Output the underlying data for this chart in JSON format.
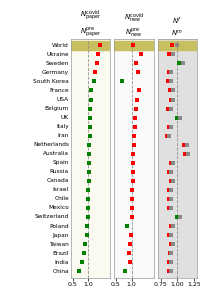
{
  "countries": [
    "World",
    "Ukraine",
    "Sweden",
    "Germany",
    "South Korea",
    "France",
    "USA",
    "Belgium",
    "UK",
    "Italy",
    "Iran",
    "Netherlands",
    "Australia",
    "Spain",
    "Russia",
    "Canada",
    "Israel",
    "Chile",
    "Mexico",
    "Switzerland",
    "Poland",
    "Japan",
    "Taiwan",
    "Brazil",
    "India",
    "China"
  ],
  "panel1": {
    "values": [
      1.38,
      1.32,
      1.28,
      1.22,
      1.18,
      1.1,
      1.08,
      1.06,
      1.05,
      1.04,
      1.04,
      1.03,
      1.02,
      1.02,
      1.01,
      1.01,
      1.0,
      1.0,
      0.99,
      0.98,
      0.97,
      0.96,
      0.9,
      0.85,
      0.79,
      0.71
    ],
    "colors": [
      "red",
      "red",
      "red",
      "red",
      "green",
      "green",
      "green",
      "green",
      "green",
      "green",
      "green",
      "green",
      "green",
      "green",
      "green",
      "green",
      "green",
      "green",
      "green",
      "green",
      "green",
      "green",
      "green",
      "green",
      "green",
      "green"
    ],
    "xlim": [
      0.45,
      1.7
    ],
    "xticks": [
      0.5,
      1.0
    ],
    "xticklabels": [
      "0.5",
      "1.0"
    ],
    "vline": 1.0,
    "bg_color": "#fafaf0"
  },
  "panel2": {
    "values": [
      1.05,
      1.3,
      1.15,
      1.2,
      0.68,
      1.22,
      1.18,
      1.14,
      1.12,
      1.1,
      1.08,
      1.06,
      1.05,
      1.04,
      1.04,
      1.03,
      1.02,
      1.01,
      1.01,
      1.0,
      0.85,
      0.98,
      0.95,
      0.92,
      0.95,
      0.78
    ],
    "colors": [
      "red",
      "red",
      "red",
      "red",
      "green",
      "red",
      "red",
      "red",
      "red",
      "red",
      "red",
      "red",
      "red",
      "red",
      "red",
      "red",
      "red",
      "red",
      "red",
      "red",
      "green",
      "red",
      "red",
      "red",
      "red",
      "green"
    ],
    "xlim": [
      0.45,
      1.7
    ],
    "xticks": [
      0.5,
      1.0
    ],
    "xticklabels": [
      "0.5",
      "1.0"
    ],
    "vline": 1.0,
    "bg_color": "#fafafa"
  },
  "panel3": {
    "values_colored": [
      0.92,
      0.88,
      1.02,
      0.88,
      0.86,
      0.89,
      0.9,
      0.86,
      0.99,
      0.88,
      0.84,
      1.1,
      1.12,
      0.9,
      0.88,
      0.91,
      0.88,
      0.88,
      0.88,
      1.0,
      0.91,
      0.88,
      0.9,
      0.89,
      0.88,
      0.88
    ],
    "colors_colored": [
      "red",
      "red",
      "green",
      "red",
      "red",
      "red",
      "red",
      "red",
      "green",
      "red",
      "red",
      "red",
      "red",
      "red",
      "red",
      "red",
      "red",
      "red",
      "red",
      "green",
      "red",
      "red",
      "red",
      "red",
      "red",
      "red"
    ],
    "values_grey": [
      1.0,
      0.94,
      1.08,
      0.91,
      0.9,
      0.93,
      0.94,
      0.9,
      1.04,
      0.91,
      0.88,
      1.14,
      1.16,
      0.93,
      0.91,
      0.94,
      0.91,
      0.91,
      0.91,
      1.04,
      0.94,
      0.91,
      0.93,
      0.91,
      0.91,
      0.91
    ],
    "xlim": [
      0.7,
      1.3
    ],
    "xticks": [
      0.75,
      1.0,
      1.25
    ],
    "xticklabels": [
      "0.75",
      "1.00",
      "1.25"
    ],
    "vline": 1.0,
    "bg_color": "#e0e0e0"
  },
  "world_highlight_color": "#c8c060",
  "panel1_title": "$N^{\\mathrm{covid}}_{\\mathrm{paper}}$\n$N^{\\mathrm{pre}}_{\\mathrm{paper}}$",
  "panel2_title": "$N^{\\mathrm{covid}}_{\\mathrm{new}}$\n$N^{\\mathrm{pre}}_{\\mathrm{new}}$",
  "panel3_title": "$N^{f}$\n$N^{m}$"
}
